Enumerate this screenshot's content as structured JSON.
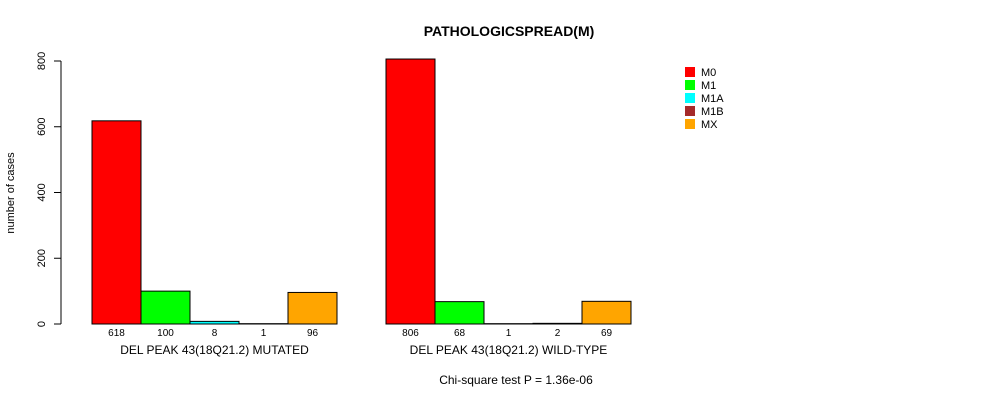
{
  "chart_data": {
    "type": "bar",
    "title": "PATHOLOGICSPREAD(M)",
    "ylabel": "number of cases",
    "ylim": [
      0,
      800
    ],
    "yticks": [
      0,
      200,
      400,
      600,
      800
    ],
    "groups": [
      "DEL PEAK 43(18Q21.2) MUTATED",
      "DEL PEAK 43(18Q21.2) WILD-TYPE"
    ],
    "series": [
      {
        "name": "M0",
        "color": "#ff0000",
        "values": [
          618,
          806
        ]
      },
      {
        "name": "M1",
        "color": "#00ff00",
        "values": [
          100,
          68
        ]
      },
      {
        "name": "M1A",
        "color": "#00ffff",
        "values": [
          8,
          1
        ]
      },
      {
        "name": "M1B",
        "color": "#a52a2a",
        "values": [
          1,
          2
        ]
      },
      {
        "name": "MX",
        "color": "#ffa500",
        "values": [
          96,
          69
        ]
      }
    ],
    "legend_position": "top-right",
    "footnote": "Chi-square test P = 1.36e-06"
  }
}
